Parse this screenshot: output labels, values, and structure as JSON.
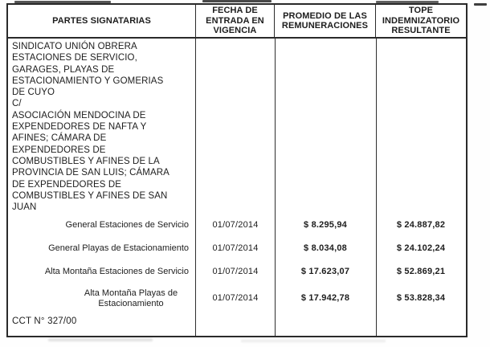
{
  "document": {
    "columns": [
      "PARTES SIGNATARIAS",
      "FECHA DE ENTRADA EN VIGENCIA",
      "PROMEDIO DE LAS REMUNERACIONES",
      "TOPE INDEMNIZATORIO RESULTANTE"
    ],
    "signatories_text": "SINDICATO UNIÓN OBRERA\nESTACIONES DE SERVICIO,\nGARAGES, PLAYAS DE\nESTACIONAMIENTO Y GOMERIAS\nDE CUYO\nC/\nASOCIACIÓN MENDOCINA DE\nEXPENDEDORES DE NAFTA Y\nAFINES; CÁMARA DE\nEXPENDEDORES DE\nCOMBUSTIBLES Y AFINES DE LA\nPROVINCIA DE SAN LUIS; CÁMARA\nDE EXPENDEDORES DE\nCOMBUSTIBLES Y AFINES DE SAN\nJUAN",
    "rows": [
      {
        "category": "General Estaciones de Servicio",
        "date": "01/07/2014",
        "average": "$ 8.295,94",
        "cap": "$ 24.887,82"
      },
      {
        "category": "General Playas de Estacionamiento",
        "date": "01/07/2014",
        "average": "$ 8.034,08",
        "cap": "$ 24.102,24"
      },
      {
        "category": "Alta Montaña Estaciones de Servicio",
        "date": "01/07/2014",
        "average": "$ 17.623,07",
        "cap": "$ 52.869,21"
      },
      {
        "category": "Alta Montaña Playas de Estacionamiento",
        "date": "01/07/2014",
        "average": "$ 17.942,78",
        "cap": "$ 53.828,34"
      }
    ],
    "note": "CCT N° 327/00"
  }
}
